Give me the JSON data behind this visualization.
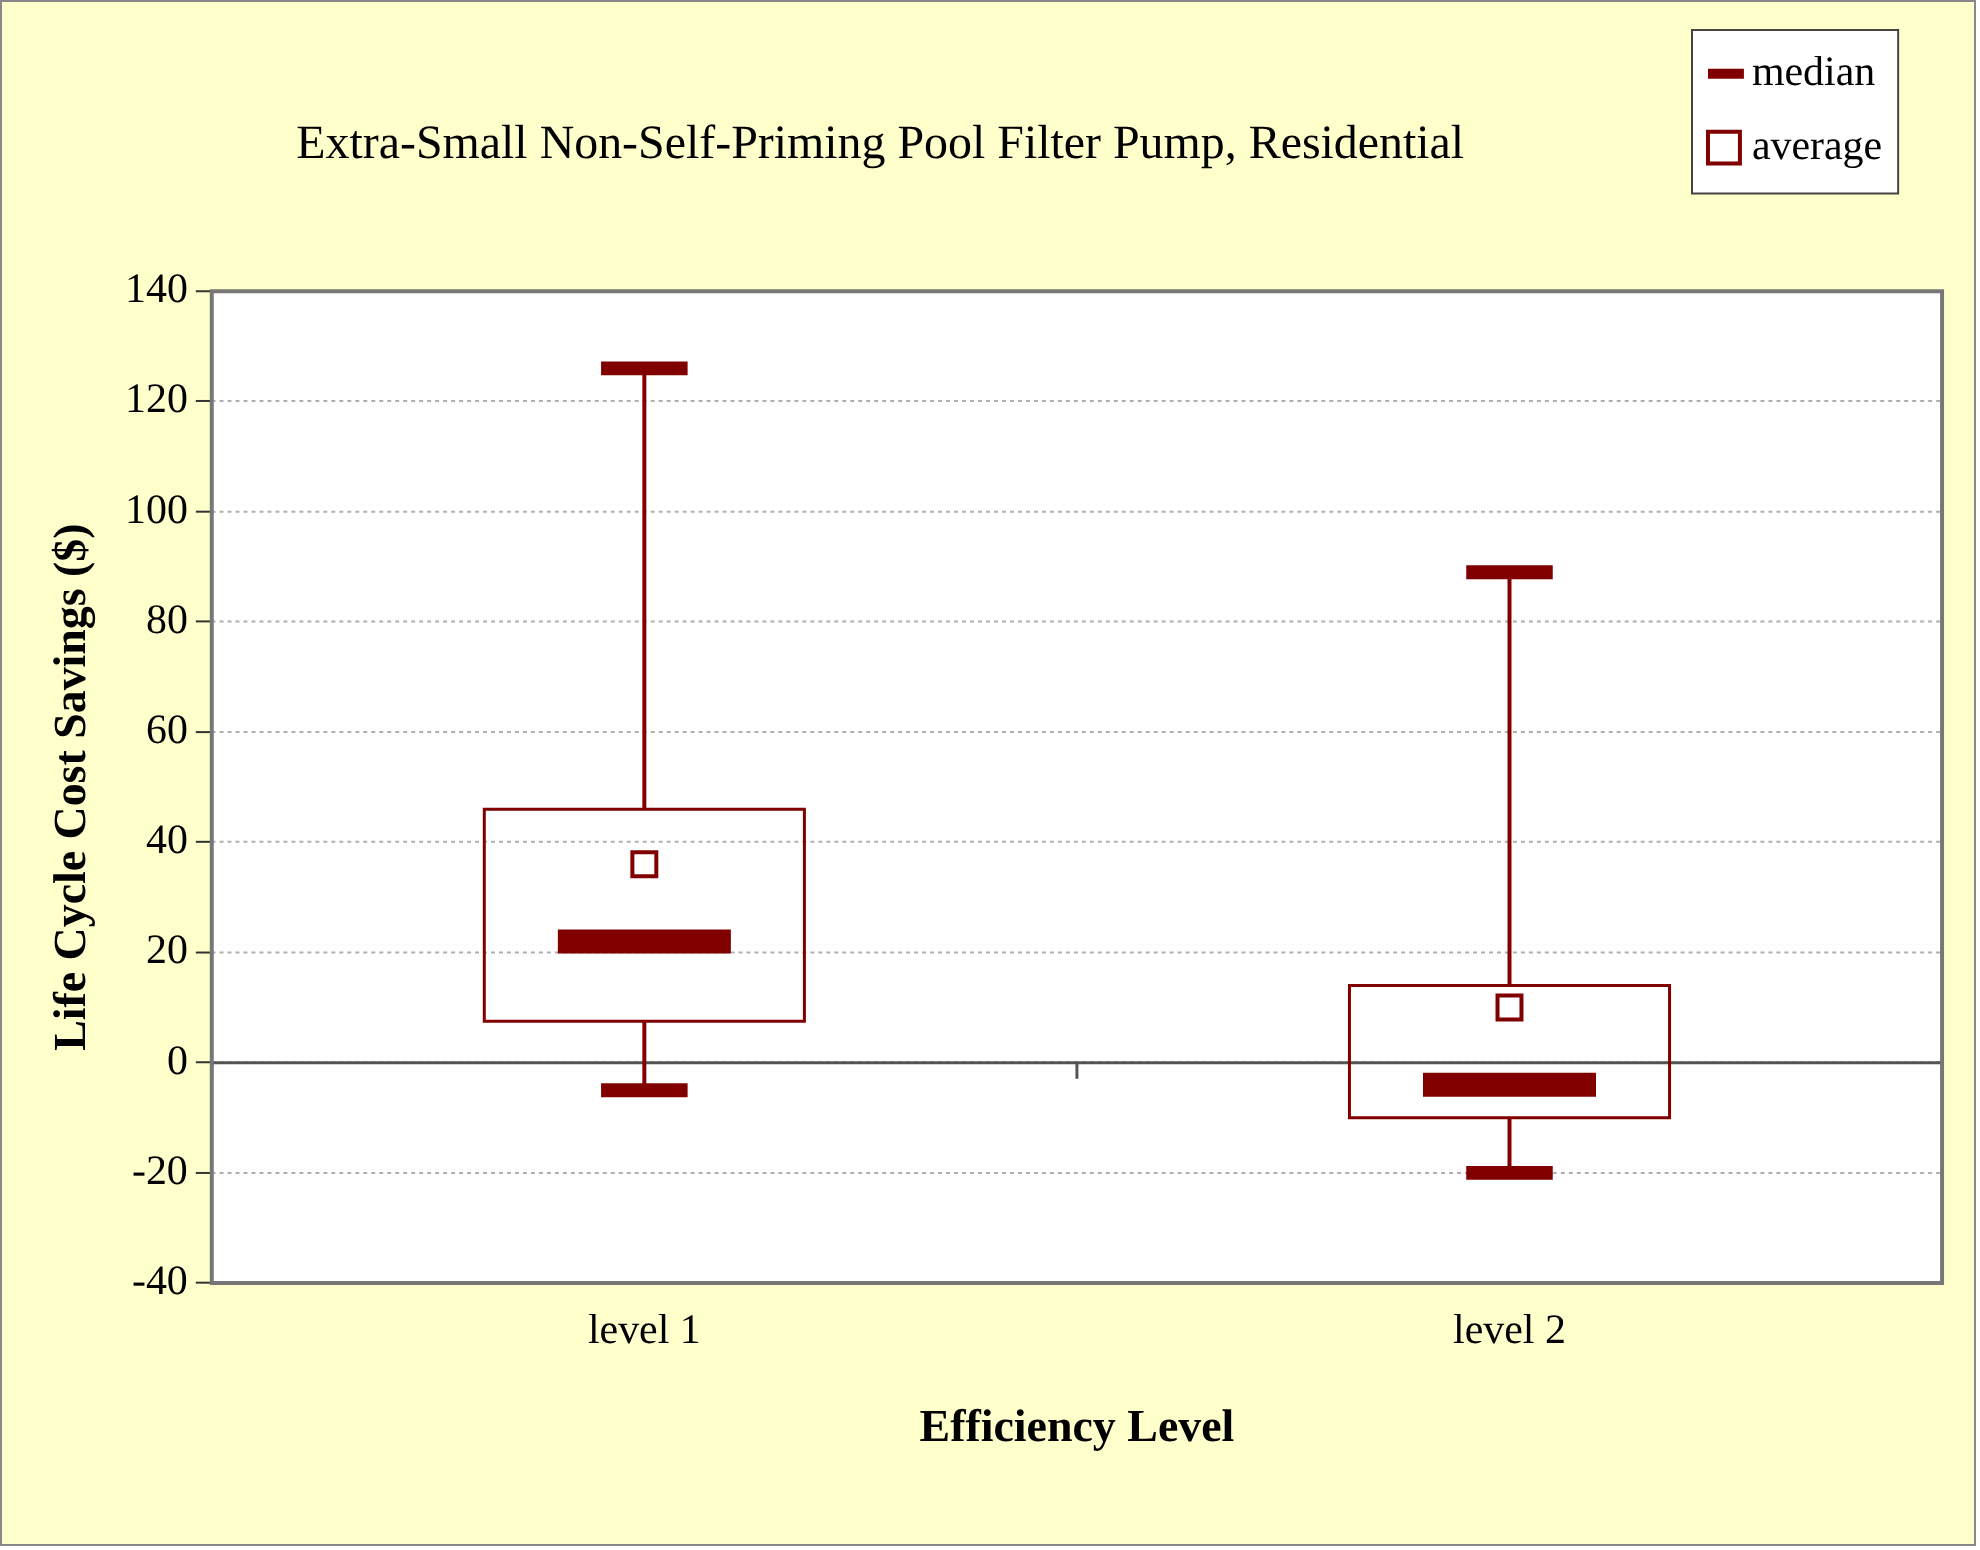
{
  "chart_data": {
    "type": "box",
    "title": "Extra-Small Non-Self-Priming Pool Filter Pump, Residential",
    "xlabel": "Efficiency Level",
    "ylabel": "Life Cycle Cost Savings ($)",
    "categories": [
      "level 1",
      "level 2"
    ],
    "series": [
      {
        "name": "median",
        "color": "#800000",
        "boxes": [
          {
            "low": -5,
            "q1": 7.5,
            "median": 22,
            "q3": 46,
            "high": 126
          },
          {
            "low": -20,
            "q1": -10,
            "median": -4,
            "q3": 14,
            "high": 89
          }
        ]
      },
      {
        "type": "scatter",
        "name": "average",
        "color": "#800000",
        "marker": "square",
        "x": [
          "level 1",
          "level 2"
        ],
        "values": [
          36,
          10
        ]
      }
    ],
    "ylim": [
      -40,
      140
    ],
    "yticks": [
      -40,
      -20,
      0,
      20,
      40,
      60,
      80,
      100,
      120,
      140
    ],
    "grid": "y",
    "legend": "top right"
  }
}
